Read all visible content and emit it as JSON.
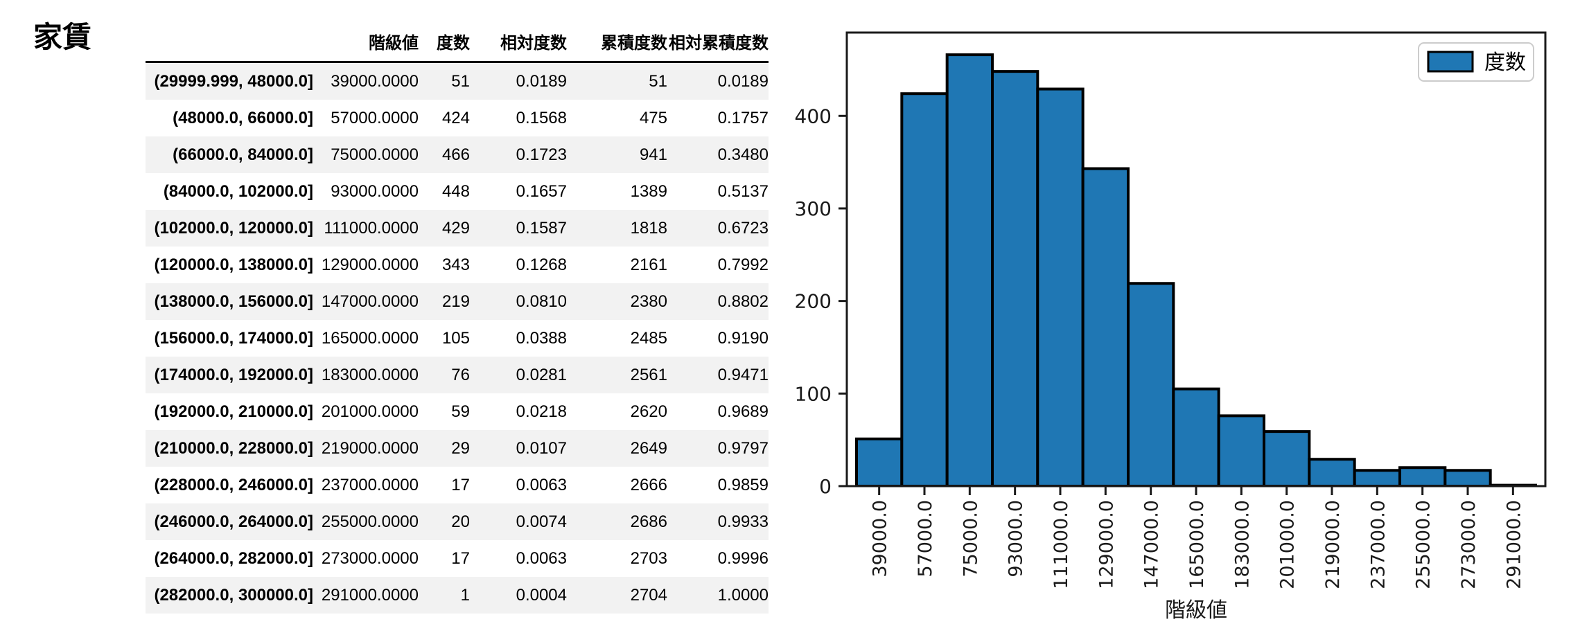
{
  "page_title": "家賃",
  "table": {
    "columns": [
      "階級値",
      "度数",
      "相対度数",
      "累積度数",
      "相対累積度数"
    ],
    "rows": [
      {
        "bin": "(29999.999, 48000.0]",
        "class_value": "39000.0000",
        "freq": "51",
        "rel_freq": "0.0189",
        "cum_freq": "51",
        "rel_cum_freq": "0.0189"
      },
      {
        "bin": "(48000.0, 66000.0]",
        "class_value": "57000.0000",
        "freq": "424",
        "rel_freq": "0.1568",
        "cum_freq": "475",
        "rel_cum_freq": "0.1757"
      },
      {
        "bin": "(66000.0, 84000.0]",
        "class_value": "75000.0000",
        "freq": "466",
        "rel_freq": "0.1723",
        "cum_freq": "941",
        "rel_cum_freq": "0.3480"
      },
      {
        "bin": "(84000.0, 102000.0]",
        "class_value": "93000.0000",
        "freq": "448",
        "rel_freq": "0.1657",
        "cum_freq": "1389",
        "rel_cum_freq": "0.5137"
      },
      {
        "bin": "(102000.0, 120000.0]",
        "class_value": "111000.0000",
        "freq": "429",
        "rel_freq": "0.1587",
        "cum_freq": "1818",
        "rel_cum_freq": "0.6723"
      },
      {
        "bin": "(120000.0, 138000.0]",
        "class_value": "129000.0000",
        "freq": "343",
        "rel_freq": "0.1268",
        "cum_freq": "2161",
        "rel_cum_freq": "0.7992"
      },
      {
        "bin": "(138000.0, 156000.0]",
        "class_value": "147000.0000",
        "freq": "219",
        "rel_freq": "0.0810",
        "cum_freq": "2380",
        "rel_cum_freq": "0.8802"
      },
      {
        "bin": "(156000.0, 174000.0]",
        "class_value": "165000.0000",
        "freq": "105",
        "rel_freq": "0.0388",
        "cum_freq": "2485",
        "rel_cum_freq": "0.9190"
      },
      {
        "bin": "(174000.0, 192000.0]",
        "class_value": "183000.0000",
        "freq": "76",
        "rel_freq": "0.0281",
        "cum_freq": "2561",
        "rel_cum_freq": "0.9471"
      },
      {
        "bin": "(192000.0, 210000.0]",
        "class_value": "201000.0000",
        "freq": "59",
        "rel_freq": "0.0218",
        "cum_freq": "2620",
        "rel_cum_freq": "0.9689"
      },
      {
        "bin": "(210000.0, 228000.0]",
        "class_value": "219000.0000",
        "freq": "29",
        "rel_freq": "0.0107",
        "cum_freq": "2649",
        "rel_cum_freq": "0.9797"
      },
      {
        "bin": "(228000.0, 246000.0]",
        "class_value": "237000.0000",
        "freq": "17",
        "rel_freq": "0.0063",
        "cum_freq": "2666",
        "rel_cum_freq": "0.9859"
      },
      {
        "bin": "(246000.0, 264000.0]",
        "class_value": "255000.0000",
        "freq": "20",
        "rel_freq": "0.0074",
        "cum_freq": "2686",
        "rel_cum_freq": "0.9933"
      },
      {
        "bin": "(264000.0, 282000.0]",
        "class_value": "273000.0000",
        "freq": "17",
        "rel_freq": "0.0063",
        "cum_freq": "2703",
        "rel_cum_freq": "0.9996"
      },
      {
        "bin": "(282000.0, 300000.0]",
        "class_value": "291000.0000",
        "freq": "1",
        "rel_freq": "0.0004",
        "cum_freq": "2704",
        "rel_cum_freq": "1.0000"
      }
    ]
  },
  "chart_data": {
    "type": "bar",
    "title": "",
    "xlabel": "階級値",
    "ylabel": "",
    "legend": {
      "label": "度数",
      "position": "upper right"
    },
    "categories": [
      "39000.0",
      "57000.0",
      "75000.0",
      "93000.0",
      "111000.0",
      "129000.0",
      "147000.0",
      "165000.0",
      "183000.0",
      "201000.0",
      "219000.0",
      "237000.0",
      "255000.0",
      "273000.0",
      "291000.0"
    ],
    "values": [
      51,
      424,
      466,
      448,
      429,
      343,
      219,
      105,
      76,
      59,
      29,
      17,
      20,
      17,
      1
    ],
    "ylim": [
      0,
      490
    ],
    "yticks": [
      0,
      100,
      200,
      300,
      400
    ],
    "grid": false,
    "bar_color": "#1f77b4",
    "bar_edge_color": "#000000",
    "axis_color": "#1a1a1a",
    "legend_border_color": "#cccccc"
  }
}
